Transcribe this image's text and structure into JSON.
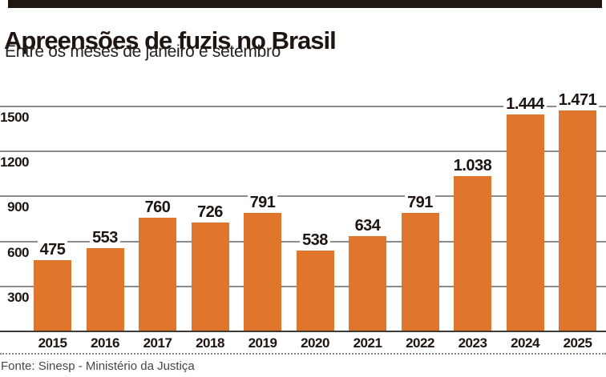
{
  "header": {
    "title": "Apreensões de fuzis no Brasil",
    "subtitle": "Entre os meses de janeiro e setembro",
    "top_bar_color": "#211712"
  },
  "chart_data": {
    "type": "bar",
    "title": "Apreensões de fuzis no Brasil",
    "subtitle": "Entre os meses de janeiro e setembro",
    "categories": [
      "2015",
      "2016",
      "2017",
      "2018",
      "2019",
      "2020",
      "2021",
      "2022",
      "2023",
      "2024",
      "2025"
    ],
    "values": [
      475,
      553,
      760,
      726,
      791,
      538,
      634,
      791,
      1038,
      1444,
      1471
    ],
    "value_labels": [
      "475",
      "553",
      "760",
      "726",
      "791",
      "538",
      "634",
      "791",
      "1.038",
      "1.444",
      "1.471"
    ],
    "yticks": [
      300,
      600,
      900,
      1200,
      1500
    ],
    "ytick_labels": [
      "300",
      "600",
      "900",
      "1200",
      "1500"
    ],
    "ylim": [
      0,
      1560
    ],
    "grid": true,
    "legend": "none",
    "bar_color": "#e0762b",
    "gridline_color": "#8c8c8a",
    "axis_color": "#3f3b38"
  },
  "footer": {
    "source": "Fonte: Sinesp - Ministério da Justiça"
  }
}
